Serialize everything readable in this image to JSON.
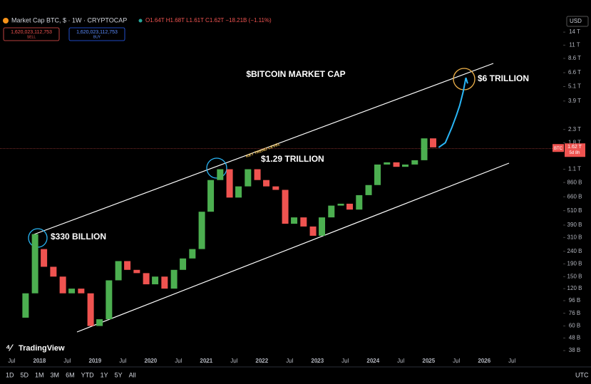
{
  "chart_data": {
    "type": "candlestick",
    "title": "$BITCOIN MARKET CAP",
    "symbol": "Market Cap BTC, $ · 1W · CRYPTOCAP",
    "ohlc": "O1.64T H1.68T L1.61T C1.62T −18.21B (−1.11%)",
    "sell_price": "1,620,023,112,753",
    "sell_label": "SELL",
    "buy_price": "1,620,023,112,753",
    "buy_label": "BUY",
    "currency": "USD",
    "timezone": "UTC",
    "brand": "TradingView",
    "periods": [
      "1D",
      "5D",
      "1M",
      "3M",
      "6M",
      "YTD",
      "1Y",
      "5Y",
      "All"
    ],
    "annotations": [
      "$6 TRILLION",
      "$1.29 TRILLION",
      "$330 BILLION",
      "KEY TREND LEVEL"
    ],
    "log_scale": true,
    "up_color": "#4caf50",
    "down_color": "#ef5350",
    "x": [
      2017.75,
      2017.92,
      2018.08,
      2018.25,
      2018.42,
      2018.58,
      2018.75,
      2018.92,
      2019.08,
      2019.25,
      2019.42,
      2019.58,
      2019.75,
      2019.92,
      2020.08,
      2020.25,
      2020.42,
      2020.58,
      2020.75,
      2020.92,
      2021.08,
      2021.25,
      2021.42,
      2021.58,
      2021.75,
      2021.92,
      2022.08,
      2022.25,
      2022.42,
      2022.58,
      2022.75,
      2022.92,
      2023.08,
      2023.25,
      2023.42,
      2023.58,
      2023.75,
      2023.92,
      2024.08,
      2024.25,
      2024.42,
      2024.58,
      2024.75,
      2024.92,
      2025.08
    ],
    "open": [
      70,
      110,
      250,
      180,
      150,
      110,
      120,
      110,
      60,
      68,
      140,
      200,
      170,
      160,
      130,
      150,
      120,
      170,
      210,
      250,
      500,
      900,
      1100,
      650,
      800,
      1100,
      900,
      800,
      750,
      400,
      450,
      380,
      320,
      450,
      560,
      580,
      520,
      680,
      820,
      1200,
      1250,
      1150,
      1200,
      1300,
      1950
    ],
    "close": [
      110,
      330,
      180,
      150,
      110,
      120,
      110,
      60,
      68,
      140,
      200,
      170,
      160,
      130,
      150,
      120,
      170,
      210,
      250,
      500,
      900,
      1100,
      650,
      800,
      1100,
      900,
      800,
      750,
      400,
      450,
      380,
      320,
      450,
      560,
      580,
      520,
      680,
      820,
      1200,
      1250,
      1150,
      1200,
      1300,
      1950,
      1650
    ],
    "line": {
      "color": "#29b6f6",
      "x": [
        2025.18,
        2025.3,
        2025.42,
        2025.5,
        2025.56,
        2025.62,
        2025.67,
        2025.7
      ],
      "values": [
        1650,
        1800,
        2400,
        3000,
        3600,
        4600,
        6000,
        5400
      ]
    },
    "last_price": {
      "value": 1620,
      "label": "1.62 T"
    },
    "last_symbol": "BTC",
    "countdown": "5d 8h",
    "xlim": [
      2017.29,
      2027.42
    ],
    "xticks": [
      {
        "value": 2017.5,
        "label": "Jul"
      },
      2018,
      {
        "value": 2018.5,
        "label": "Jul"
      },
      2019,
      {
        "value": 2019.5,
        "label": "Jul"
      },
      2020,
      {
        "value": 2020.5,
        "label": "Jul"
      },
      2021,
      {
        "value": 2021.5,
        "label": "Jul"
      },
      2022,
      {
        "value": 2022.5,
        "label": "Jul"
      },
      2023,
      {
        "value": 2023.5,
        "label": "Jul"
      },
      2024,
      {
        "value": 2024.5,
        "label": "Jul"
      },
      2025,
      {
        "value": 2025.5,
        "label": "Jul"
      },
      2026,
      {
        "value": 2026.5,
        "label": "Jul"
      }
    ],
    "ylim": [
      30,
      19000
    ],
    "yticks": [
      {
        "value": 14000,
        "label": "14 T"
      },
      {
        "value": 11000,
        "label": "11 T"
      },
      {
        "value": 8600,
        "label": "8.6 T"
      },
      {
        "value": 6600,
        "label": "6.6 T"
      },
      {
        "value": 5100,
        "label": "5.1 T"
      },
      {
        "value": 3900,
        "label": "3.9 T"
      },
      {
        "value": 2300,
        "label": "2.3 T"
      },
      {
        "value": 1800,
        "label": "1.8 T"
      },
      {
        "value": 1100,
        "label": "1.1 T"
      },
      {
        "value": 860,
        "label": "860 B"
      },
      {
        "value": 660,
        "label": "660 B"
      },
      {
        "value": 510,
        "label": "510 B"
      },
      {
        "value": 390,
        "label": "390 B"
      },
      {
        "value": 310,
        "label": "310 B"
      },
      {
        "value": 240,
        "label": "240 B"
      },
      {
        "value": 190,
        "label": "190 B"
      },
      {
        "value": 150,
        "label": "150 B"
      },
      {
        "value": 120,
        "label": "120 B"
      },
      {
        "value": 96,
        "label": "96 B"
      },
      {
        "value": 76,
        "label": "76 B"
      },
      {
        "value": 60,
        "label": "60 B"
      },
      {
        "value": 48,
        "label": "48 B"
      },
      {
        "value": 38,
        "label": "38 B"
      }
    ]
  }
}
